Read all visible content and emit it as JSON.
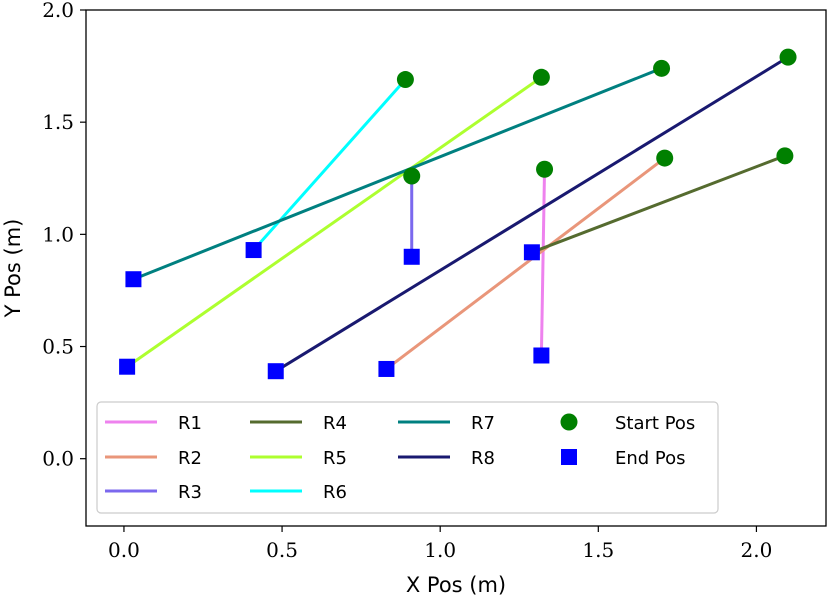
{
  "chart_data": {
    "type": "line",
    "xlabel": "X Pos (m)",
    "ylabel": "Y Pos (m)",
    "xlim": [
      -0.12,
      2.22
    ],
    "ylim": [
      -0.3,
      2.0
    ],
    "xticks": [
      0.0,
      0.5,
      1.0,
      1.5,
      2.0
    ],
    "xtick_labels": [
      "0.0",
      "0.5",
      "1.0",
      "1.5",
      "2.0"
    ],
    "yticks": [
      0.0,
      0.5,
      1.0,
      1.5,
      2.0
    ],
    "ytick_labels": [
      "0.0",
      "0.5",
      "1.0",
      "1.5",
      "2.0"
    ],
    "grid": false,
    "legend_position": "bottom-left",
    "series": [
      {
        "name": "R1",
        "color": "#ee82ee",
        "start": [
          1.33,
          1.29
        ],
        "end": [
          1.32,
          0.46
        ]
      },
      {
        "name": "R2",
        "color": "#e9967a",
        "start": [
          1.71,
          1.34
        ],
        "end": [
          0.83,
          0.4
        ]
      },
      {
        "name": "R3",
        "color": "#7b68ee",
        "start": [
          0.91,
          1.26
        ],
        "end": [
          0.91,
          0.9
        ]
      },
      {
        "name": "R4",
        "color": "#556b2f",
        "start": [
          2.09,
          1.35
        ],
        "end": [
          1.29,
          0.92
        ]
      },
      {
        "name": "R5",
        "color": "#adff2f",
        "start": [
          1.32,
          1.7
        ],
        "end": [
          0.01,
          0.41
        ]
      },
      {
        "name": "R6",
        "color": "#00ffff",
        "start": [
          0.89,
          1.69
        ],
        "end": [
          0.41,
          0.93
        ]
      },
      {
        "name": "R7",
        "color": "#008080",
        "start": [
          1.7,
          1.74
        ],
        "end": [
          0.03,
          0.8
        ]
      },
      {
        "name": "R8",
        "color": "#191970",
        "start": [
          2.1,
          1.79
        ],
        "end": [
          0.48,
          0.39
        ]
      }
    ],
    "markers": {
      "start": {
        "label": "Start Pos",
        "color": "#008000",
        "shape": "circle"
      },
      "end": {
        "label": "End Pos",
        "color": "#0000ff",
        "shape": "square"
      }
    }
  }
}
